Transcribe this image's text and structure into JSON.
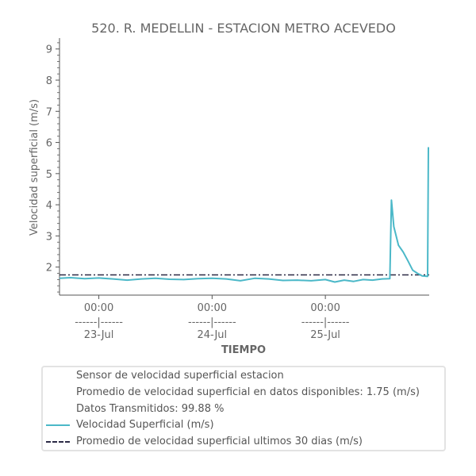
{
  "chart_data": {
    "type": "line",
    "title": "520. R. MEDELLIN - ESTACION METRO ACEVEDO",
    "xlabel": "TIEMPO",
    "ylabel": "Velocidad superficial (m/s)",
    "ylim": [
      1.1,
      9.35
    ],
    "yticks": [
      2,
      3,
      4,
      5,
      6,
      7,
      8,
      9
    ],
    "xlim": [
      "2024-07-22T15:40",
      "2024-07-25T22:00"
    ],
    "xticks": [
      {
        "x": "2024-07-23T00:00",
        "time": "00:00",
        "sep": "------|------",
        "date": "23-Jul"
      },
      {
        "x": "2024-07-24T00:00",
        "time": "00:00",
        "sep": "------|------",
        "date": "24-Jul"
      },
      {
        "x": "2024-07-25T00:00",
        "time": "00:00",
        "sep": "------|------",
        "date": "25-Jul"
      }
    ],
    "grid": false,
    "legend_placement": "bottom",
    "series": [
      {
        "name": "Velocidad Superficial (m/s)",
        "color": "#4bb8c8",
        "points": [
          [
            "2024-07-22T15:40",
            1.64
          ],
          [
            "2024-07-22T18:00",
            1.66
          ],
          [
            "2024-07-22T21:00",
            1.63
          ],
          [
            "2024-07-23T00:00",
            1.65
          ],
          [
            "2024-07-23T03:00",
            1.62
          ],
          [
            "2024-07-23T06:00",
            1.58
          ],
          [
            "2024-07-23T09:00",
            1.62
          ],
          [
            "2024-07-23T12:00",
            1.64
          ],
          [
            "2024-07-23T15:00",
            1.61
          ],
          [
            "2024-07-23T18:00",
            1.6
          ],
          [
            "2024-07-23T21:00",
            1.63
          ],
          [
            "2024-07-24T00:00",
            1.64
          ],
          [
            "2024-07-24T03:00",
            1.62
          ],
          [
            "2024-07-24T06:00",
            1.56
          ],
          [
            "2024-07-24T09:00",
            1.64
          ],
          [
            "2024-07-24T12:00",
            1.62
          ],
          [
            "2024-07-24T15:00",
            1.57
          ],
          [
            "2024-07-24T18:00",
            1.58
          ],
          [
            "2024-07-24T21:00",
            1.56
          ],
          [
            "2024-07-25T00:00",
            1.6
          ],
          [
            "2024-07-25T02:00",
            1.52
          ],
          [
            "2024-07-25T04:00",
            1.58
          ],
          [
            "2024-07-25T06:00",
            1.54
          ],
          [
            "2024-07-25T08:00",
            1.6
          ],
          [
            "2024-07-25T10:00",
            1.58
          ],
          [
            "2024-07-25T12:00",
            1.62
          ],
          [
            "2024-07-25T13:40",
            1.63
          ],
          [
            "2024-07-25T14:00",
            4.15
          ],
          [
            "2024-07-25T14:30",
            3.3
          ],
          [
            "2024-07-25T15:30",
            2.7
          ],
          [
            "2024-07-25T16:30",
            2.48
          ],
          [
            "2024-07-25T17:30",
            2.2
          ],
          [
            "2024-07-25T18:30",
            1.9
          ],
          [
            "2024-07-25T19:30",
            1.8
          ],
          [
            "2024-07-25T20:30",
            1.72
          ],
          [
            "2024-07-25T21:40",
            1.7
          ],
          [
            "2024-07-25T21:50",
            5.85
          ]
        ]
      },
      {
        "name": "Promedio de velocidad superficial ultimos 30 dias (m/s)",
        "color": "#2b2a45",
        "style": "dash-dot",
        "value": 1.75
      }
    ]
  },
  "legend": {
    "info_lines": [
      "Sensor de velocidad superficial estacion",
      "Promedio de velocidad superficial en datos disponibles: 1.75 (m/s)",
      "Datos Transmitidos: 99.88 %"
    ],
    "series_line": "Velocidad Superficial (m/s)",
    "mean_line": "Promedio de velocidad superficial ultimos 30 dias (m/s)"
  },
  "colors": {
    "text": "#555555",
    "series": "#4bb8c8",
    "mean": "#2b2a45",
    "axis": "#555555"
  }
}
